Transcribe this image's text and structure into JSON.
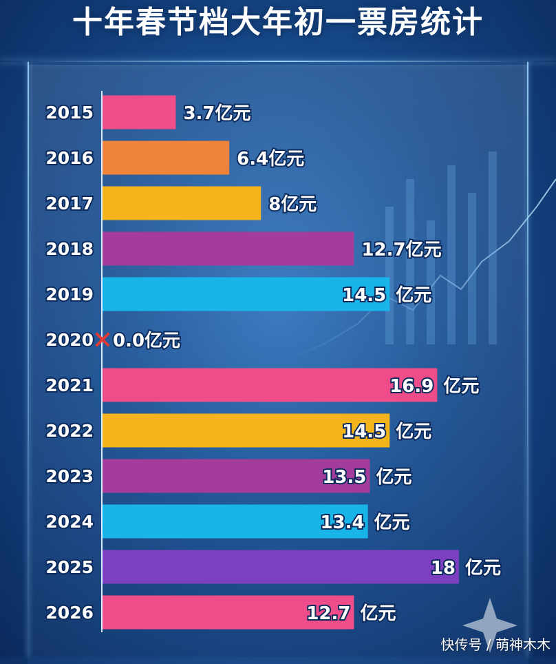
{
  "title": "十年春节档大年初一票房统计",
  "unit": "亿元",
  "watermark": "快传号 / 萌神木木",
  "chart_data": {
    "type": "bar",
    "orientation": "horizontal",
    "title": "十年春节档大年初一票房统计",
    "categories": [
      "2015",
      "2016",
      "2017",
      "2018",
      "2019",
      "2020",
      "2021",
      "2022",
      "2023",
      "2024",
      "2025",
      "2026"
    ],
    "values": [
      3.7,
      6.4,
      8,
      12.7,
      14.5,
      0.0,
      16.9,
      14.5,
      13.5,
      13.4,
      18,
      12.7
    ],
    "value_labels": [
      "3.7",
      "6.4",
      "8",
      "12.7",
      "14.5",
      "0.0",
      "16.9",
      "14.5",
      "13.5",
      "13.4",
      "18",
      "12.7"
    ],
    "label_position": [
      "outside",
      "outside",
      "outside",
      "outside",
      "inside",
      "outside",
      "inside",
      "inside",
      "inside",
      "inside",
      "inside",
      "inside"
    ],
    "unit_suffix": "亿元",
    "colors": [
      "#ee4d8a",
      "#f0843a",
      "#f3b51b",
      "#a33c9a",
      "#19b4e8",
      "#e53935",
      "#ee4d8a",
      "#f3b51b",
      "#a33c9a",
      "#19b4e8",
      "#7b3fbf",
      "#ee4d8a"
    ],
    "annotations": [
      {
        "category": "2020",
        "marker": "cross",
        "color": "#e53935"
      }
    ],
    "xlim": [
      0,
      18
    ],
    "grid": false,
    "legend": "none"
  }
}
